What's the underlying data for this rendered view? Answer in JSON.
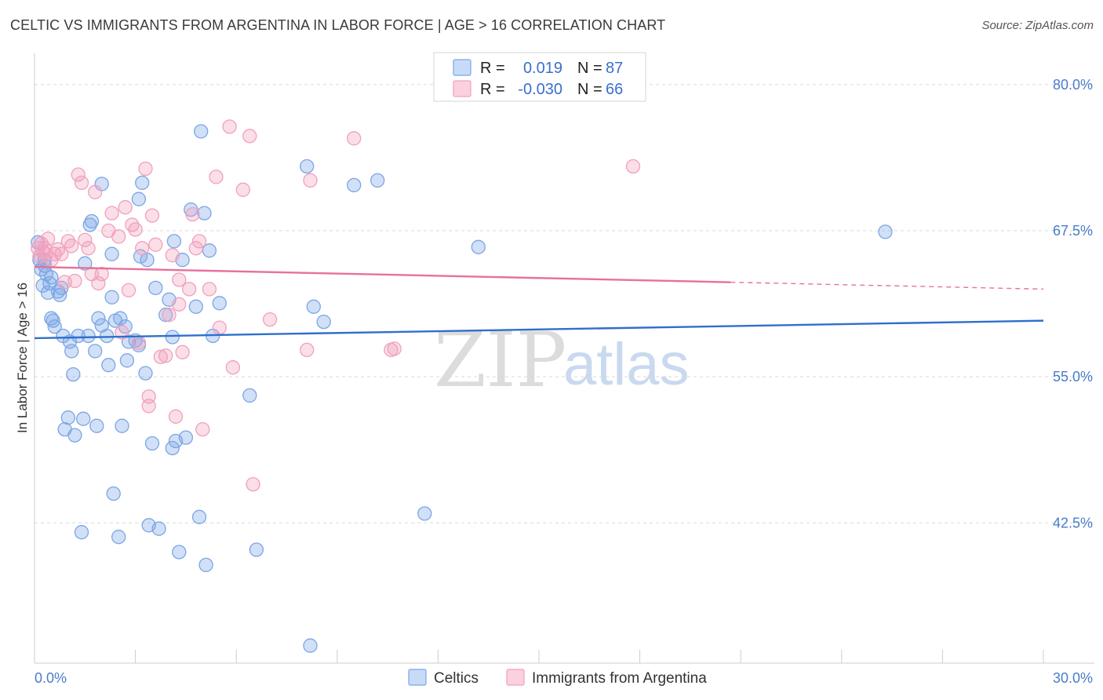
{
  "header": {
    "title": "CELTIC VS IMMIGRANTS FROM ARGENTINA IN LABOR FORCE | AGE > 16 CORRELATION CHART",
    "source": "Source: ZipAtlas.com"
  },
  "watermark": {
    "part1": "ZIP",
    "part2": "atlas"
  },
  "chart_data": {
    "type": "scatter",
    "title": "CELTIC VS IMMIGRANTS FROM ARGENTINA IN LABOR FORCE | AGE > 16 CORRELATION CHART",
    "xlabel": "",
    "ylabel": "In Labor Force | Age > 16",
    "xlim": [
      0,
      30
    ],
    "ylim": [
      30.5,
      82
    ],
    "x_tick_labels": [
      "0.0%",
      "30.0%"
    ],
    "y_ticks": [
      42.5,
      55.0,
      67.5,
      80.0
    ],
    "y_tick_labels": [
      "42.5%",
      "55.0%",
      "67.5%",
      "80.0%"
    ],
    "grid": true,
    "legend_position": "top-center",
    "legend": {
      "r_label": "R =",
      "n_label": "N =",
      "rows": [
        {
          "r": "0.019",
          "n": "87"
        },
        {
          "r": "-0.030",
          "n": "66"
        }
      ]
    },
    "series": [
      {
        "name": "Celtics",
        "color": "#7aa6e6",
        "line_color": "#2f6fcc",
        "trend": {
          "x": [
            0,
            30
          ],
          "y": [
            58.3,
            59.8
          ],
          "dashed_from": null
        },
        "points": [
          [
            0.1,
            66.5
          ],
          [
            0.15,
            65.0
          ],
          [
            0.2,
            64.2
          ],
          [
            0.25,
            62.8
          ],
          [
            0.3,
            64.5
          ],
          [
            0.35,
            63.8
          ],
          [
            0.4,
            62.2
          ],
          [
            0.45,
            63.0
          ],
          [
            0.5,
            60.0
          ],
          [
            0.55,
            59.8
          ],
          [
            0.6,
            59.3
          ],
          [
            0.7,
            62.3
          ],
          [
            0.75,
            62.0
          ],
          [
            0.8,
            62.6
          ],
          [
            0.85,
            58.5
          ],
          [
            0.9,
            50.5
          ],
          [
            1.0,
            51.5
          ],
          [
            1.05,
            58.0
          ],
          [
            1.1,
            57.2
          ],
          [
            1.15,
            55.2
          ],
          [
            1.2,
            50.0
          ],
          [
            1.3,
            58.5
          ],
          [
            1.4,
            41.7
          ],
          [
            1.45,
            51.4
          ],
          [
            1.5,
            64.7
          ],
          [
            1.6,
            58.5
          ],
          [
            1.65,
            68.0
          ],
          [
            1.7,
            68.3
          ],
          [
            1.8,
            57.2
          ],
          [
            1.85,
            50.8
          ],
          [
            1.9,
            60.0
          ],
          [
            2.0,
            59.4
          ],
          [
            2.0,
            71.5
          ],
          [
            2.15,
            58.5
          ],
          [
            2.2,
            56.0
          ],
          [
            2.3,
            61.8
          ],
          [
            2.35,
            45.0
          ],
          [
            2.4,
            59.8
          ],
          [
            2.5,
            41.3
          ],
          [
            2.55,
            60.0
          ],
          [
            2.6,
            50.8
          ],
          [
            2.7,
            59.3
          ],
          [
            2.75,
            56.4
          ],
          [
            2.8,
            58.0
          ],
          [
            3.0,
            58.1
          ],
          [
            3.1,
            57.7
          ],
          [
            3.15,
            65.3
          ],
          [
            3.2,
            71.6
          ],
          [
            3.3,
            55.3
          ],
          [
            3.4,
            42.3
          ],
          [
            3.5,
            49.3
          ],
          [
            3.6,
            62.6
          ],
          [
            3.7,
            42.0
          ],
          [
            3.35,
            65.0
          ],
          [
            3.1,
            70.2
          ],
          [
            3.9,
            60.3
          ],
          [
            4.0,
            61.6
          ],
          [
            4.1,
            58.4
          ],
          [
            4.15,
            66.6
          ],
          [
            4.2,
            49.5
          ],
          [
            4.1,
            48.9
          ],
          [
            4.3,
            40.0
          ],
          [
            4.4,
            65.0
          ],
          [
            4.5,
            49.8
          ],
          [
            4.65,
            69.3
          ],
          [
            4.8,
            61.0
          ],
          [
            4.9,
            43.0
          ],
          [
            4.95,
            76.0
          ],
          [
            5.05,
            69.0
          ],
          [
            5.1,
            38.9
          ],
          [
            5.3,
            58.5
          ],
          [
            5.2,
            65.8
          ],
          [
            5.5,
            61.3
          ],
          [
            6.4,
            53.4
          ],
          [
            6.6,
            40.2
          ],
          [
            8.1,
            73.0
          ],
          [
            8.2,
            32.0
          ],
          [
            8.3,
            61.0
          ],
          [
            8.6,
            59.7
          ],
          [
            9.5,
            71.4
          ],
          [
            10.2,
            71.8
          ],
          [
            11.6,
            43.3
          ],
          [
            13.2,
            66.1
          ],
          [
            25.3,
            67.4
          ],
          [
            2.3,
            65.5
          ],
          [
            0.3,
            65.0
          ],
          [
            0.5,
            63.5
          ]
        ]
      },
      {
        "name": "Immigrants from Argentina",
        "color": "#f2a0bc",
        "line_color": "#e8709a",
        "trend": {
          "x": [
            0,
            30
          ],
          "y": [
            64.4,
            62.5
          ],
          "dashed_from": 20.7
        },
        "points": [
          [
            0.1,
            66.0
          ],
          [
            0.15,
            65.3
          ],
          [
            0.2,
            66.4
          ],
          [
            0.25,
            65.7
          ],
          [
            0.3,
            66.0
          ],
          [
            0.35,
            65.5
          ],
          [
            0.4,
            66.8
          ],
          [
            0.5,
            65.0
          ],
          [
            0.6,
            65.5
          ],
          [
            0.7,
            65.9
          ],
          [
            0.8,
            65.5
          ],
          [
            0.9,
            63.1
          ],
          [
            1.0,
            66.6
          ],
          [
            1.1,
            66.2
          ],
          [
            1.2,
            63.2
          ],
          [
            1.3,
            72.3
          ],
          [
            1.4,
            71.6
          ],
          [
            1.5,
            66.7
          ],
          [
            1.6,
            66.0
          ],
          [
            1.7,
            63.8
          ],
          [
            1.8,
            70.8
          ],
          [
            1.9,
            63.0
          ],
          [
            2.0,
            63.8
          ],
          [
            2.2,
            67.5
          ],
          [
            2.3,
            69.0
          ],
          [
            2.5,
            67.0
          ],
          [
            2.6,
            58.8
          ],
          [
            2.7,
            69.5
          ],
          [
            2.8,
            62.4
          ],
          [
            2.9,
            68.0
          ],
          [
            3.0,
            67.6
          ],
          [
            3.1,
            57.9
          ],
          [
            3.2,
            66.0
          ],
          [
            3.3,
            72.8
          ],
          [
            3.4,
            53.3
          ],
          [
            3.4,
            52.5
          ],
          [
            3.5,
            68.8
          ],
          [
            3.6,
            66.3
          ],
          [
            3.75,
            56.7
          ],
          [
            3.9,
            56.8
          ],
          [
            4.0,
            60.3
          ],
          [
            4.1,
            65.4
          ],
          [
            4.2,
            51.6
          ],
          [
            4.3,
            61.2
          ],
          [
            4.3,
            63.3
          ],
          [
            4.4,
            57.1
          ],
          [
            4.6,
            62.5
          ],
          [
            4.7,
            68.9
          ],
          [
            4.8,
            66.0
          ],
          [
            4.9,
            66.6
          ],
          [
            5.0,
            50.5
          ],
          [
            5.2,
            62.5
          ],
          [
            5.4,
            72.1
          ],
          [
            5.5,
            59.2
          ],
          [
            5.8,
            76.4
          ],
          [
            5.9,
            55.8
          ],
          [
            6.2,
            71.0
          ],
          [
            6.4,
            75.6
          ],
          [
            6.5,
            45.8
          ],
          [
            7.0,
            59.9
          ],
          [
            8.1,
            57.3
          ],
          [
            8.2,
            71.8
          ],
          [
            9.5,
            75.4
          ],
          [
            10.6,
            57.3
          ],
          [
            10.7,
            57.4
          ],
          [
            17.8,
            73.0
          ]
        ]
      }
    ]
  },
  "bottom_legend": {
    "items": [
      "Celtics",
      "Immigrants from Argentina"
    ]
  }
}
